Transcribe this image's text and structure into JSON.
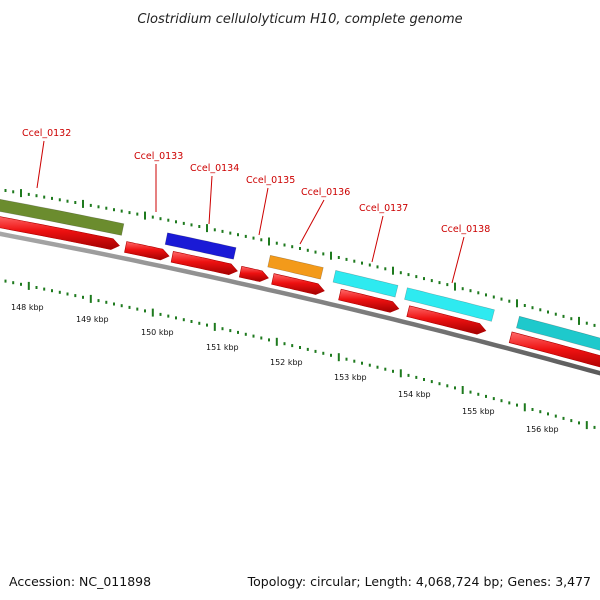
{
  "title": "Clostridium cellulolyticum H10, complete genome",
  "footer": {
    "accession": "Accession: NC_011898",
    "summary": "Topology: circular; Length: 4,068,724 bp; Genes: 3,477"
  },
  "colors": {
    "backbone": "#7a7a7a",
    "cds": "#ee1111",
    "tick": "#1e7a1e",
    "label": "#cc0000",
    "green_feature": "#6b8c2e",
    "blue_feature": "#1a1ad6",
    "orange_feature": "#f39a1a",
    "cyan_feature": "#2eeaf0",
    "teal_feature": "#1ec9cc"
  },
  "kbp_labels": [
    "148 kbp",
    "149 kbp",
    "150 kbp",
    "151 kbp",
    "152 kbp",
    "153 kbp",
    "154 kbp",
    "155 kbp",
    "156 kbp"
  ],
  "gene_labels": [
    "Ccel_0132",
    "Ccel_0133",
    "Ccel_0134",
    "Ccel_0135",
    "Ccel_0136",
    "Ccel_0137",
    "Ccel_0138"
  ],
  "upper_features": [
    {
      "color": "#6b8c2e"
    },
    {
      "color": "#1a1ad6"
    },
    {
      "color": "#f39a1a"
    },
    {
      "color": "#2eeaf0"
    },
    {
      "color": "#2eeaf0"
    },
    {
      "color": "#1ec9cc"
    }
  ]
}
